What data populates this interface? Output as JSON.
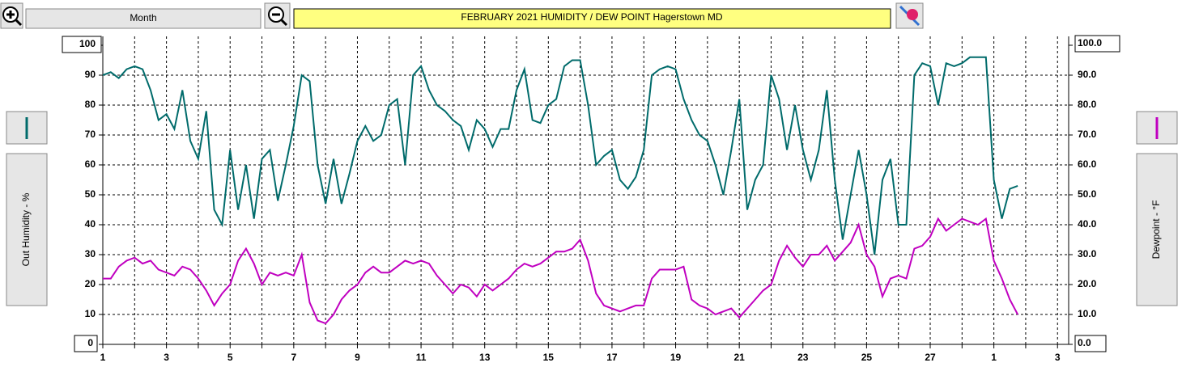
{
  "toolbar": {
    "range_button": "Month"
  },
  "chart_data": {
    "type": "line",
    "title": "FEBRUARY  2021   HUMIDITY / DEW POINT  Hagerstown MD",
    "x": [
      0,
      0.25,
      0.5,
      0.75,
      1,
      1.25,
      1.5,
      1.75,
      2,
      2.25,
      2.5,
      2.75,
      3,
      3.25,
      3.5,
      3.75,
      4,
      4.25,
      4.5,
      4.75,
      5,
      5.25,
      5.5,
      5.75,
      6,
      6.25,
      6.5,
      6.75,
      7,
      7.25,
      7.5,
      7.75,
      8,
      8.25,
      8.5,
      8.75,
      9,
      9.25,
      9.5,
      9.75,
      10,
      10.25,
      10.5,
      10.75,
      11,
      11.25,
      11.5,
      11.75,
      12,
      12.25,
      12.5,
      12.75,
      13,
      13.25,
      13.5,
      13.75,
      14,
      14.25,
      14.5,
      14.75,
      15,
      15.25,
      15.5,
      15.75,
      16,
      16.25,
      16.5,
      16.75,
      17,
      17.25,
      17.5,
      17.75,
      18,
      18.25,
      18.5,
      18.75,
      19,
      19.25,
      19.5,
      19.75,
      20,
      20.25,
      20.5,
      20.75,
      21,
      21.25,
      21.5,
      21.75,
      22,
      22.25,
      22.5,
      22.75,
      23,
      23.25,
      23.5,
      23.75,
      24,
      24.25,
      24.5,
      24.75,
      25,
      25.25,
      25.5,
      25.75,
      26,
      26.25,
      26.5,
      26.75,
      27,
      27.25,
      27.5,
      27.75,
      28,
      28.25,
      28.5,
      28.75
    ],
    "series": [
      {
        "name": "Out Humidity - %",
        "color": "#006b6b",
        "values": [
          90,
          91,
          89,
          92,
          93,
          92,
          85,
          75,
          77,
          72,
          85,
          68,
          62,
          78,
          45,
          40,
          65,
          45,
          60,
          42,
          62,
          65,
          48,
          60,
          73,
          90,
          88,
          60,
          47,
          62,
          47,
          57,
          68,
          73,
          68,
          70,
          80,
          82,
          60,
          90,
          93,
          85,
          80,
          78,
          75,
          73,
          65,
          75,
          72,
          66,
          72,
          72,
          85,
          92,
          75,
          74,
          80,
          82,
          93,
          95,
          95,
          80,
          60,
          63,
          65,
          55,
          52,
          56,
          65,
          90,
          92,
          93,
          92,
          82,
          75,
          70,
          68,
          60,
          50,
          65,
          82,
          45,
          55,
          60,
          90,
          82,
          65,
          80,
          65,
          55,
          65,
          85,
          55,
          35,
          50,
          65,
          50,
          30,
          55,
          62,
          40,
          40,
          90,
          94,
          93,
          80,
          94,
          93,
          94,
          96,
          96,
          96,
          55,
          42,
          52,
          53
        ]
      },
      {
        "name": "Dewpoint - °F",
        "color": "#c000c0",
        "axis": "y2",
        "values": [
          22,
          22,
          26,
          28,
          29,
          27,
          28,
          25,
          24,
          23,
          26,
          25,
          22,
          18,
          13,
          17,
          20,
          28,
          32,
          27,
          20,
          24,
          23,
          24,
          23,
          30,
          14,
          8,
          7,
          10,
          15,
          18,
          20,
          24,
          26,
          24,
          24,
          26,
          28,
          27,
          28,
          27,
          23,
          20,
          17,
          20,
          19,
          16,
          20,
          18,
          20,
          22,
          25,
          27,
          26,
          27,
          29,
          31,
          31,
          32,
          35,
          28,
          17,
          13,
          12,
          11,
          12,
          13,
          13,
          22,
          25,
          25,
          25,
          26,
          15,
          13,
          12,
          10,
          11,
          12,
          9,
          12,
          15,
          18,
          20,
          28,
          33,
          29,
          26,
          30,
          30,
          33,
          28,
          31,
          34,
          40,
          30,
          26,
          16,
          22,
          23,
          22,
          32,
          33,
          36,
          42,
          38,
          40,
          42,
          41,
          40,
          42,
          28,
          22,
          15,
          10
        ]
      }
    ],
    "xlim": [
      0,
      30.35
    ],
    "xticks": [
      {
        "value": 0,
        "label": "1"
      },
      {
        "value": 2,
        "label": "3"
      },
      {
        "value": 4,
        "label": "5"
      },
      {
        "value": 6,
        "label": "7"
      },
      {
        "value": 8,
        "label": "9"
      },
      {
        "value": 10,
        "label": "11"
      },
      {
        "value": 12,
        "label": "13"
      },
      {
        "value": 14,
        "label": "15"
      },
      {
        "value": 16,
        "label": "17"
      },
      {
        "value": 18,
        "label": "19"
      },
      {
        "value": 20,
        "label": "21"
      },
      {
        "value": 22,
        "label": "23"
      },
      {
        "value": 24,
        "label": "25"
      },
      {
        "value": 26,
        "label": "27"
      },
      {
        "value": 28,
        "label": "1"
      },
      {
        "value": 30,
        "label": "3"
      }
    ],
    "xminor": [
      1,
      3,
      5,
      7,
      9,
      11,
      13,
      15,
      17,
      19,
      21,
      23,
      25,
      27,
      29
    ],
    "ylim": [
      0,
      100
    ],
    "yticks": [
      0,
      10,
      20,
      30,
      40,
      50,
      60,
      70,
      80,
      90,
      100
    ],
    "y2lim": [
      0,
      100
    ],
    "y2ticks": [
      {
        "value": 0,
        "label": "0.0"
      },
      {
        "value": 10,
        "label": "10.0"
      },
      {
        "value": 20,
        "label": "20.0"
      },
      {
        "value": 30,
        "label": "30.0"
      },
      {
        "value": 40,
        "label": "40.0"
      },
      {
        "value": 50,
        "label": "50.0"
      },
      {
        "value": 60,
        "label": "60.0"
      },
      {
        "value": 70,
        "label": "70.0"
      },
      {
        "value": 80,
        "label": "80.0"
      },
      {
        "value": 90,
        "label": "90.0"
      },
      {
        "value": 100,
        "label": "100.0"
      }
    ],
    "grid": true
  }
}
